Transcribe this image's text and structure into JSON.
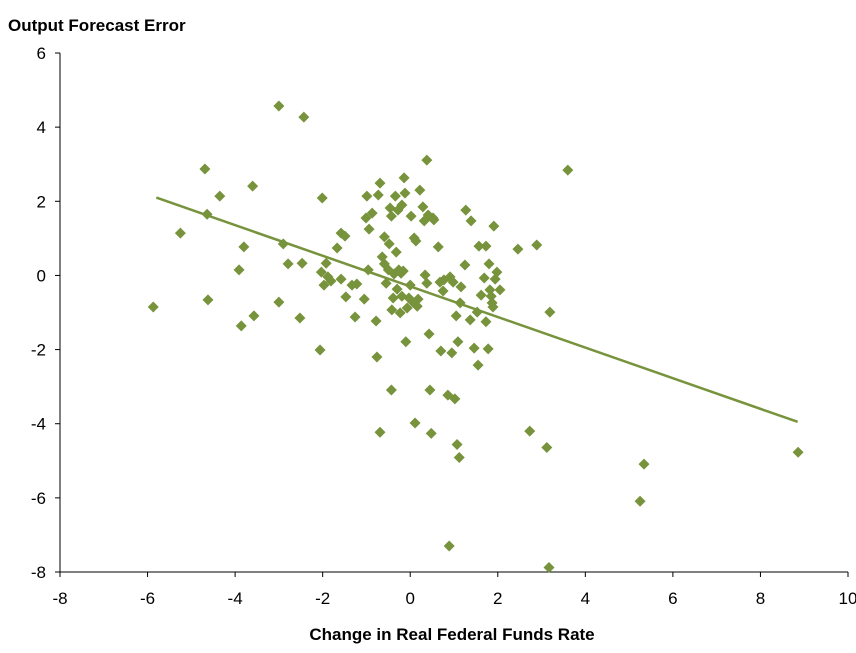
{
  "chart_data": {
    "type": "scatter",
    "title": "Output Forecast Error",
    "x_label": "Change in Real Federal Funds Rate",
    "color": "#77933c",
    "x": [
      -5.87,
      -5.25,
      -4.69,
      -4.64,
      -4.62,
      -4.35,
      -3.6,
      -3.91,
      -3.8,
      -3.86,
      -3.57,
      -3.0,
      -2.43,
      -2.9,
      -3.0,
      -2.79,
      -2.47,
      -2.52,
      -2.01,
      -2.06,
      -2.03,
      -1.92,
      -1.97,
      -1.88,
      -1.81,
      -1.67,
      -1.58,
      -1.49,
      -1.58,
      -1.47,
      -1.33,
      -1.22,
      -1.26,
      -1.01,
      -0.99,
      -0.96,
      -0.94,
      -0.87,
      -1.05,
      -0.73,
      -0.69,
      -0.78,
      -0.76,
      -0.69,
      -0.64,
      -0.59,
      -0.59,
      -0.55,
      -0.5,
      -0.48,
      -0.46,
      -0.43,
      -0.43,
      -0.42,
      -0.39,
      -0.37,
      -0.34,
      -0.32,
      -0.3,
      -0.28,
      -0.26,
      -0.23,
      -0.21,
      -0.19,
      -0.19,
      -0.16,
      -0.14,
      -0.12,
      -0.1,
      -0.07,
      -0.03,
      0.0,
      0.02,
      0.06,
      0.09,
      0.11,
      0.13,
      0.16,
      0.18,
      0.22,
      0.29,
      0.32,
      0.34,
      0.38,
      0.38,
      0.41,
      0.43,
      0.45,
      0.48,
      0.52,
      0.54,
      0.64,
      0.68,
      0.7,
      0.75,
      0.77,
      0.86,
      0.89,
      0.91,
      0.95,
      0.98,
      1.02,
      1.05,
      1.07,
      1.09,
      1.12,
      1.14,
      1.16,
      1.25,
      1.27,
      1.39,
      1.37,
      1.46,
      1.53,
      1.55,
      1.57,
      1.62,
      1.69,
      1.73,
      1.73,
      1.78,
      1.8,
      1.82,
      1.85,
      1.87,
      1.89,
      1.91,
      1.94,
      1.98,
      2.05,
      2.46,
      2.73,
      2.89,
      3.12,
      3.19,
      3.17,
      3.6,
      5.25,
      5.34,
      8.86
    ],
    "values": [
      -0.85,
      1.14,
      2.87,
      1.65,
      -0.66,
      2.14,
      2.41,
      0.15,
      0.77,
      -1.36,
      -1.09,
      4.57,
      4.27,
      0.85,
      -0.72,
      0.31,
      0.33,
      -1.15,
      2.09,
      -2.01,
      0.09,
      0.33,
      -0.26,
      -0.04,
      -0.15,
      0.74,
      1.14,
      1.06,
      -0.1,
      -0.58,
      -0.26,
      -0.23,
      -1.12,
      1.55,
      2.14,
      0.15,
      1.25,
      1.68,
      -0.64,
      2.17,
      2.49,
      -1.23,
      -2.2,
      -4.23,
      0.5,
      0.31,
      1.04,
      -0.21,
      0.15,
      0.85,
      1.82,
      1.6,
      -3.09,
      -0.93,
      -0.61,
      0.04,
      2.14,
      0.63,
      -0.37,
      1.76,
      0.15,
      -1.01,
      0.06,
      -0.56,
      1.9,
      0.12,
      2.63,
      2.22,
      -1.79,
      -0.88,
      -0.61,
      -0.26,
      1.6,
      -0.72,
      1.01,
      -3.98,
      0.93,
      -0.83,
      -0.64,
      2.3,
      1.85,
      1.47,
      0.01,
      3.11,
      -0.21,
      1.63,
      -1.58,
      -3.09,
      -4.26,
      1.55,
      1.5,
      0.77,
      -0.18,
      -2.04,
      -0.42,
      -0.12,
      -3.23,
      -7.3,
      -0.04,
      -2.09,
      -0.18,
      -3.33,
      -1.09,
      -4.56,
      -1.79,
      -4.91,
      -0.74,
      -0.31,
      0.28,
      1.76,
      1.47,
      -1.2,
      -1.96,
      -0.99,
      -2.42,
      0.79,
      -0.53,
      -0.07,
      0.79,
      -1.25,
      -1.98,
      0.31,
      -0.39,
      -0.56,
      -0.74,
      -0.85,
      1.33,
      -0.1,
      0.09,
      -0.39,
      0.71,
      -4.2,
      0.82,
      -4.64,
      -0.99,
      -7.88,
      2.84,
      -6.09,
      -5.09,
      -4.77
    ],
    "trend": {
      "x": [
        -5.8,
        8.85
      ],
      "values": [
        2.1,
        -3.95
      ]
    },
    "xlim": [
      -8,
      10
    ],
    "xticks": [
      -8,
      -6,
      -4,
      -2,
      0,
      2,
      4,
      6,
      8,
      10
    ],
    "ylim": [
      -8,
      6
    ],
    "yticks": [
      -8,
      -6,
      -4,
      -2,
      0,
      2,
      4,
      6
    ]
  }
}
